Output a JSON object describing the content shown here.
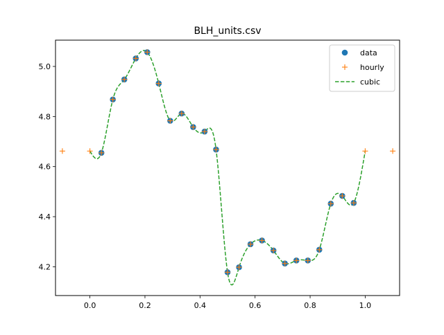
{
  "chart_data": {
    "type": "line",
    "title": "BLH_units.csv",
    "xlabel": "",
    "ylabel": "",
    "xlim": [
      -0.125,
      1.125
    ],
    "ylim": [
      4.085,
      5.105
    ],
    "xticks": [
      0.0,
      0.2,
      0.4,
      0.6,
      0.8,
      1.0
    ],
    "xtick_labels": [
      "0.0",
      "0.2",
      "0.4",
      "0.6",
      "0.8",
      "1.0"
    ],
    "yticks": [
      4.2,
      4.4,
      4.6,
      4.8,
      5.0
    ],
    "ytick_labels": [
      "4.2",
      "4.4",
      "4.6",
      "4.8",
      "5.0"
    ],
    "grid": false,
    "legend_position": "top-right",
    "series": [
      {
        "name": "data",
        "style": "markers-circle",
        "color": "#1f77b4",
        "x": [
          0.0417,
          0.0833,
          0.125,
          0.1667,
          0.2083,
          0.25,
          0.2917,
          0.3333,
          0.375,
          0.4167,
          0.4583,
          0.5,
          0.5417,
          0.5833,
          0.625,
          0.6667,
          0.7083,
          0.75,
          0.7917,
          0.8333,
          0.875,
          0.9167,
          0.9583
        ],
        "y": [
          4.655,
          4.868,
          4.948,
          5.032,
          5.057,
          4.932,
          4.783,
          4.812,
          4.758,
          4.74,
          4.668,
          4.178,
          4.198,
          4.29,
          4.305,
          4.265,
          4.213,
          4.225,
          4.225,
          4.268,
          4.452,
          4.483,
          4.455
        ]
      },
      {
        "name": "hourly",
        "style": "markers-plus",
        "color": "#ff7f0e",
        "x": [
          -0.1,
          0.0,
          0.0417,
          0.0833,
          0.125,
          0.1667,
          0.2083,
          0.25,
          0.2917,
          0.3333,
          0.375,
          0.4167,
          0.4583,
          0.5,
          0.5417,
          0.5833,
          0.625,
          0.6667,
          0.7083,
          0.75,
          0.7917,
          0.8333,
          0.875,
          0.9167,
          0.9583,
          1.0,
          1.1
        ],
        "y": [
          4.662,
          4.662,
          4.655,
          4.868,
          4.948,
          5.032,
          5.057,
          4.932,
          4.783,
          4.812,
          4.758,
          4.74,
          4.668,
          4.178,
          4.198,
          4.29,
          4.305,
          4.265,
          4.213,
          4.225,
          4.225,
          4.268,
          4.452,
          4.483,
          4.455,
          4.662,
          4.662
        ]
      },
      {
        "name": "cubic",
        "style": "dashed-line",
        "color": "#2ca02c",
        "x": [
          0.0,
          0.0417,
          0.0833,
          0.125,
          0.1667,
          0.2083,
          0.25,
          0.2917,
          0.3333,
          0.375,
          0.4167,
          0.4583,
          0.5,
          0.5417,
          0.5833,
          0.625,
          0.6667,
          0.7083,
          0.75,
          0.7917,
          0.8333,
          0.875,
          0.9167,
          0.9583,
          1.0
        ],
        "y": [
          4.662,
          4.655,
          4.868,
          4.948,
          5.032,
          5.057,
          4.932,
          4.783,
          4.812,
          4.758,
          4.74,
          4.668,
          4.178,
          4.198,
          4.29,
          4.305,
          4.265,
          4.213,
          4.225,
          4.225,
          4.268,
          4.452,
          4.483,
          4.455,
          4.662
        ]
      }
    ]
  }
}
